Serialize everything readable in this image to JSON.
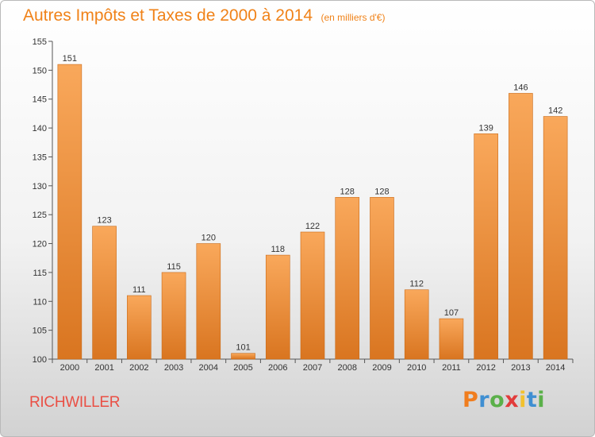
{
  "header": {
    "title": "Autres Impôts et Taxes de 2000 à 2014",
    "subtitle": "(en milliers d'€)"
  },
  "commune": "RICHWILLER",
  "logo": {
    "text": "Proxiti",
    "letter_colors": [
      "#f07d1e",
      "#3f8fd2",
      "#5bb04a",
      "#e23b3b",
      "#f2c12e",
      "#3f8fd2",
      "#5bb04a"
    ]
  },
  "colors": {
    "bar_light": "#f9a85b",
    "bar_dark": "#d97520",
    "bar_edge": "#c96a18",
    "accent": "#f08218",
    "commune": "#ea4f44"
  },
  "chart_data": {
    "type": "bar",
    "title": "Autres Impôts et Taxes de 2000 à 2014",
    "subtitle": "(en milliers d'€)",
    "categories": [
      "2000",
      "2001",
      "2002",
      "2003",
      "2004",
      "2005",
      "2006",
      "2007",
      "2008",
      "2009",
      "2010",
      "2011",
      "2012",
      "2013",
      "2014"
    ],
    "values": [
      151,
      123,
      111,
      115,
      120,
      101,
      118,
      122,
      128,
      128,
      112,
      107,
      139,
      146,
      142
    ],
    "ylim": [
      100,
      155
    ],
    "yticks": [
      100,
      105,
      110,
      115,
      120,
      125,
      130,
      135,
      140,
      145,
      150,
      155
    ],
    "grid": false,
    "data_labels": true
  }
}
